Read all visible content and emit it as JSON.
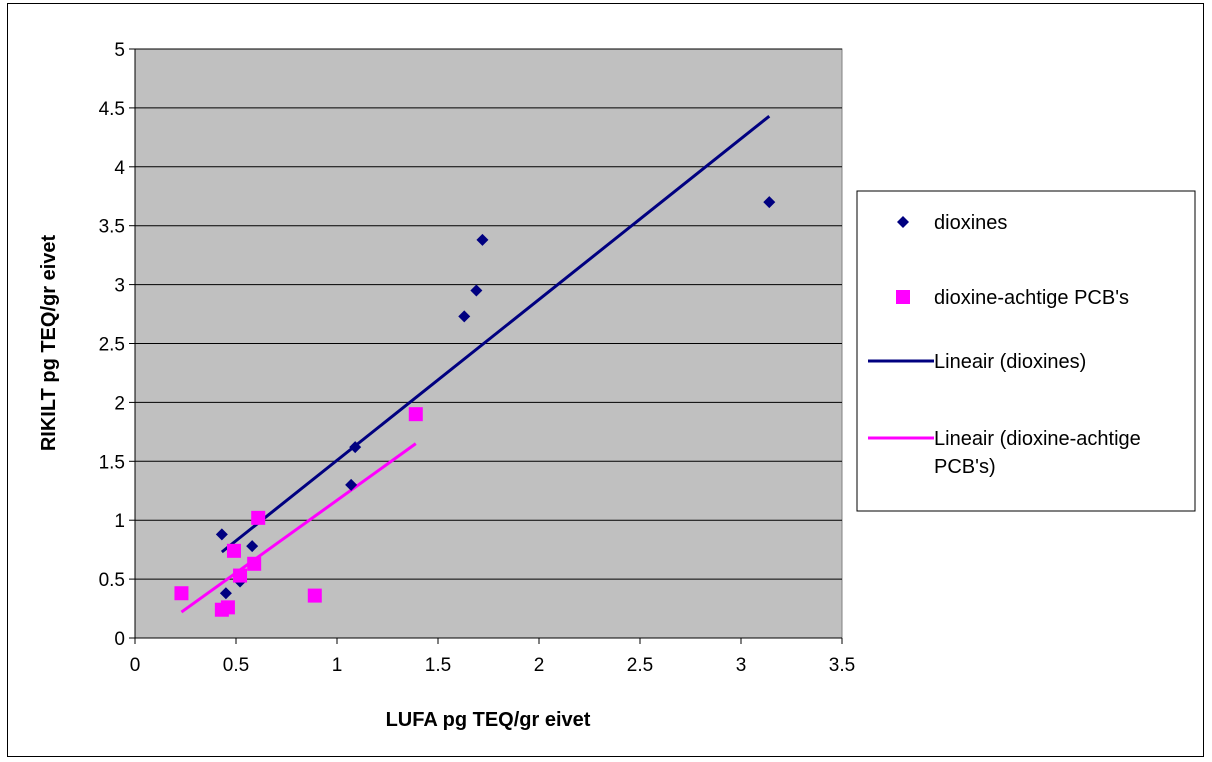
{
  "chart_data": {
    "type": "scatter",
    "xlabel": "LUFA pg TEQ/gr eivet",
    "ylabel": "RIKILT pg TEQ/gr eivet",
    "xlim": [
      0,
      3.5
    ],
    "ylim": [
      0,
      5
    ],
    "x_ticks": [
      "0",
      "0.5",
      "1",
      "1.5",
      "2",
      "2.5",
      "3",
      "3.5"
    ],
    "y_ticks": [
      "0",
      "0.5",
      "1",
      "1.5",
      "2",
      "2.5",
      "3",
      "3.5",
      "4",
      "4.5",
      "5"
    ],
    "grid": "horizontal",
    "plot_background": "#c0c0c0",
    "legend_position": "right",
    "series": [
      {
        "name": "dioxines",
        "marker": "diamond",
        "color": "#000080",
        "points": [
          {
            "x": 0.43,
            "y": 0.88
          },
          {
            "x": 0.45,
            "y": 0.38
          },
          {
            "x": 0.52,
            "y": 0.48
          },
          {
            "x": 0.58,
            "y": 0.78
          },
          {
            "x": 1.07,
            "y": 1.3
          },
          {
            "x": 1.09,
            "y": 1.62
          },
          {
            "x": 1.63,
            "y": 2.73
          },
          {
            "x": 1.69,
            "y": 2.95
          },
          {
            "x": 1.72,
            "y": 3.38
          },
          {
            "x": 3.14,
            "y": 3.7
          }
        ]
      },
      {
        "name": "dioxine-achtige PCB's",
        "marker": "square",
        "color": "#ff00ff",
        "points": [
          {
            "x": 0.23,
            "y": 0.38
          },
          {
            "x": 0.43,
            "y": 0.24
          },
          {
            "x": 0.46,
            "y": 0.26
          },
          {
            "x": 0.49,
            "y": 0.74
          },
          {
            "x": 0.52,
            "y": 0.53
          },
          {
            "x": 0.59,
            "y": 0.63
          },
          {
            "x": 0.61,
            "y": 1.02
          },
          {
            "x": 0.89,
            "y": 0.36
          },
          {
            "x": 1.39,
            "y": 1.9
          }
        ]
      }
    ],
    "trendlines": [
      {
        "name": "Lineair (dioxines)",
        "color": "#000080",
        "x": [
          0.43,
          3.14
        ],
        "y": [
          0.73,
          4.43
        ]
      },
      {
        "name": "Lineair (dioxine-achtige PCB's)",
        "color": "#ff00ff",
        "x": [
          0.23,
          1.39
        ],
        "y": [
          0.22,
          1.65
        ]
      }
    ],
    "legend": [
      {
        "label": "dioxines",
        "kind": "diamond",
        "color": "#000080"
      },
      {
        "label": "dioxine-achtige PCB's",
        "kind": "square",
        "color": "#ff00ff"
      },
      {
        "label": "Lineair (dioxines)",
        "kind": "line",
        "color": "#000080"
      },
      {
        "label": "Lineair (dioxine-achtige",
        "label2": "PCB's)",
        "kind": "line",
        "color": "#ff00ff"
      }
    ]
  }
}
